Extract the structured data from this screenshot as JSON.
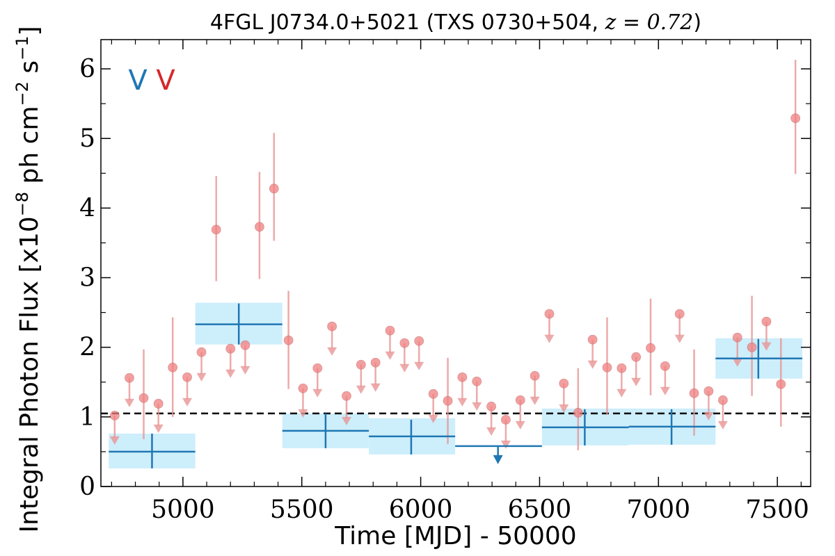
{
  "chart_data": {
    "type": "scatter",
    "title_text": "4FGL J0734.0+5021 (TXS 0730+504, ",
    "title_math": "z = 0.72",
    "title_close": ")",
    "xlabel": "Time [MJD] - 50000",
    "ylabel_text": "Integral Photon Flux [x10",
    "ylabel_exp1": "−8",
    "ylabel_mid": " ph cm",
    "ylabel_exp2": "−2",
    "ylabel_mid2": " s",
    "ylabel_exp3": "−1",
    "ylabel_close": "]",
    "xlim": [
      4655,
      7640
    ],
    "ylim": [
      0,
      6.42
    ],
    "xticks": [
      5000,
      5500,
      6000,
      6500,
      7000,
      7500
    ],
    "yticks": [
      0,
      1,
      2,
      3,
      4,
      5,
      6
    ],
    "reference_line": 1.05,
    "bands": [
      {
        "label": "V",
        "color": "#1f77b4"
      },
      {
        "label": "V",
        "color": "#d62728"
      }
    ],
    "colors": {
      "fine_points": "#f08080",
      "fine_err": "#e89595",
      "coarse": "#1f77b4",
      "coarse_box": "#cdeefb"
    },
    "coarse_bins": [
      {
        "x": 4870,
        "x_lo": 4688,
        "x_hi": 5052,
        "y": 0.5,
        "y_lo": 0.26,
        "y_hi": 0.76,
        "box_lo": 0.26,
        "box_hi": 0.76
      },
      {
        "x": 5235,
        "x_lo": 5052,
        "x_hi": 5418,
        "y": 2.33,
        "y_lo": 2.04,
        "y_hi": 2.63,
        "box_lo": 2.04,
        "box_hi": 2.64
      },
      {
        "x": 5600,
        "x_lo": 5418,
        "x_hi": 5782,
        "y": 0.8,
        "y_lo": 0.55,
        "y_hi": 1.05,
        "box_lo": 0.55,
        "box_hi": 1.05
      },
      {
        "x": 5960,
        "x_lo": 5782,
        "x_hi": 6145,
        "y": 0.72,
        "y_lo": 0.46,
        "y_hi": 0.96,
        "box_lo": 0.46,
        "box_hi": 0.98
      },
      {
        "x": 6325,
        "x_lo": 6145,
        "x_hi": 6510,
        "y": 0.58,
        "upper_limit": true
      },
      {
        "x": 6690,
        "x_lo": 6510,
        "x_hi": 6875,
        "y": 0.85,
        "y_lo": 0.59,
        "y_hi": 1.11,
        "box_lo": 0.59,
        "box_hi": 1.12
      },
      {
        "x": 7055,
        "x_lo": 6875,
        "x_hi": 7240,
        "y": 0.86,
        "y_lo": 0.6,
        "y_hi": 1.11,
        "box_lo": 0.6,
        "box_hi": 1.12
      },
      {
        "x": 7420,
        "x_lo": 7240,
        "x_hi": 7605,
        "y": 1.84,
        "y_lo": 1.55,
        "y_hi": 2.12,
        "box_lo": 1.55,
        "box_hi": 2.13
      }
    ],
    "fine_points": [
      {
        "x": 4713,
        "y": 1.02,
        "ul": true
      },
      {
        "x": 4775,
        "y": 1.56,
        "ul": true
      },
      {
        "x": 4835,
        "y": 1.27,
        "y_lo": 0.68,
        "y_hi": 1.97
      },
      {
        "x": 4897,
        "y": 1.19,
        "ul": true
      },
      {
        "x": 4957,
        "y": 1.71,
        "y_lo": 1.0,
        "y_hi": 2.43
      },
      {
        "x": 5018,
        "y": 1.57,
        "ul": true
      },
      {
        "x": 5078,
        "y": 1.93,
        "ul": true
      },
      {
        "x": 5140,
        "y": 3.69,
        "y_lo": 2.95,
        "y_hi": 4.46
      },
      {
        "x": 5200,
        "y": 1.98,
        "ul": true
      },
      {
        "x": 5262,
        "y": 2.03,
        "ul": true
      },
      {
        "x": 5322,
        "y": 3.73,
        "y_lo": 2.98,
        "y_hi": 4.52
      },
      {
        "x": 5383,
        "y": 4.28,
        "y_lo": 3.53,
        "y_hi": 5.08
      },
      {
        "x": 5444,
        "y": 2.1,
        "y_lo": 1.4,
        "y_hi": 2.81
      },
      {
        "x": 5505,
        "y": 1.41,
        "ul": true
      },
      {
        "x": 5566,
        "y": 1.7,
        "ul": true
      },
      {
        "x": 5627,
        "y": 2.3,
        "ul": true
      },
      {
        "x": 5688,
        "y": 1.3,
        "ul": true
      },
      {
        "x": 5749,
        "y": 1.75,
        "ul": true
      },
      {
        "x": 5810,
        "y": 1.78,
        "ul": true
      },
      {
        "x": 5871,
        "y": 2.24,
        "ul": true
      },
      {
        "x": 5932,
        "y": 2.06,
        "ul": true
      },
      {
        "x": 5993,
        "y": 2.09,
        "ul": true
      },
      {
        "x": 6053,
        "y": 1.33,
        "ul": true
      },
      {
        "x": 6114,
        "y": 1.23,
        "y_lo": 0.61,
        "y_hi": 1.85
      },
      {
        "x": 6175,
        "y": 1.57,
        "ul": true
      },
      {
        "x": 6236,
        "y": 1.51,
        "ul": true
      },
      {
        "x": 6297,
        "y": 1.15,
        "ul": true
      },
      {
        "x": 6358,
        "y": 0.96,
        "ul": true
      },
      {
        "x": 6419,
        "y": 1.24,
        "ul": true
      },
      {
        "x": 6480,
        "y": 1.59,
        "ul": true
      },
      {
        "x": 6541,
        "y": 2.48,
        "ul": true
      },
      {
        "x": 6602,
        "y": 1.48,
        "ul": true
      },
      {
        "x": 6662,
        "y": 1.06,
        "y_lo": 0.52,
        "y_hi": 1.7
      },
      {
        "x": 6723,
        "y": 2.11,
        "ul": true
      },
      {
        "x": 6784,
        "y": 1.71,
        "y_lo": 1.03,
        "y_hi": 2.43
      },
      {
        "x": 6845,
        "y": 1.7,
        "ul": true
      },
      {
        "x": 6906,
        "y": 1.86,
        "ul": true
      },
      {
        "x": 6967,
        "y": 1.99,
        "y_lo": 1.31,
        "y_hi": 2.7
      },
      {
        "x": 7028,
        "y": 1.73,
        "ul": true
      },
      {
        "x": 7089,
        "y": 2.48,
        "ul": true
      },
      {
        "x": 7150,
        "y": 1.34,
        "y_lo": 0.73,
        "y_hi": 1.97
      },
      {
        "x": 7211,
        "y": 1.37,
        "ul": true
      },
      {
        "x": 7271,
        "y": 1.24,
        "ul": true
      },
      {
        "x": 7332,
        "y": 2.14,
        "ul": true
      },
      {
        "x": 7393,
        "y": 2.0,
        "y_lo": 1.3,
        "y_hi": 2.74
      },
      {
        "x": 7454,
        "y": 2.37,
        "ul": true
      },
      {
        "x": 7515,
        "y": 1.47,
        "y_lo": 0.86,
        "y_hi": 2.13
      },
      {
        "x": 7576,
        "y": 5.29,
        "y_lo": 4.49,
        "y_hi": 6.13
      }
    ]
  }
}
